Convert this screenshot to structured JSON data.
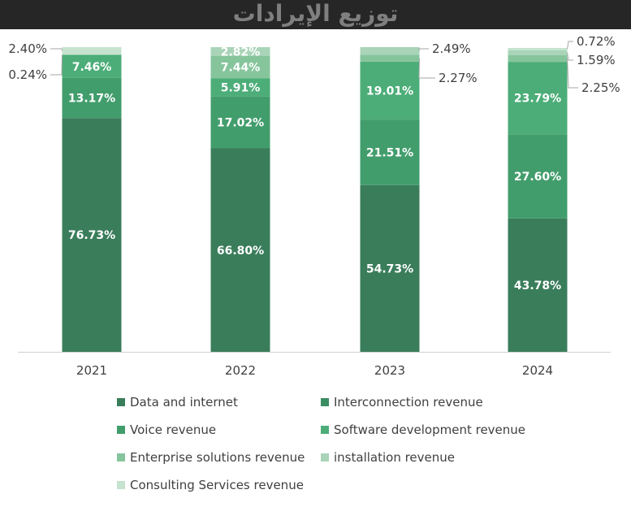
{
  "chart_data": {
    "type": "bar",
    "stacked": true,
    "title": "توزيع الإيرادات",
    "categories": [
      "2021",
      "2022",
      "2023",
      "2024"
    ],
    "series": [
      {
        "name": "Data and internet",
        "color": "#3a7d5b",
        "values": [
          76.73,
          66.8,
          54.73,
          43.78
        ],
        "labels": [
          "76.73%",
          "66.80%",
          "54.73%",
          "43.78%"
        ]
      },
      {
        "name": "Interconnection revenue",
        "color": "#3b8d62",
        "values": [
          0,
          0,
          0,
          0
        ],
        "labels": [
          "",
          "",
          "",
          ""
        ]
      },
      {
        "name": "Voice revenue",
        "color": "#429d6c",
        "values": [
          13.17,
          17.02,
          21.51,
          27.6
        ],
        "labels": [
          "13.17%",
          "17.02%",
          "21.51%",
          "27.60%"
        ]
      },
      {
        "name": "Software development revenue",
        "color": "#4cad78",
        "values": [
          7.46,
          5.91,
          19.01,
          23.79
        ],
        "labels": [
          "7.46%",
          "5.91%",
          "19.01%",
          "23.79%"
        ]
      },
      {
        "name": "Enterprise solutions revenue",
        "color": "#86c59c",
        "values": [
          0.24,
          7.44,
          2.27,
          2.25
        ],
        "labels": [
          "0.24%",
          "7.44%",
          "2.27%",
          "2.25%"
        ]
      },
      {
        "name": "installation revenue",
        "color": "#a9d4b8",
        "values": [
          0,
          2.82,
          2.49,
          1.59
        ],
        "labels": [
          "",
          "2.82%",
          "2.49%",
          "1.59%"
        ]
      },
      {
        "name": "Consulting Services revenue",
        "color": "#c6e3cf",
        "values": [
          2.4,
          0,
          0,
          0.72
        ],
        "labels": [
          "2.40%",
          "",
          "",
          "0.72%"
        ]
      }
    ],
    "ylim": [
      0,
      100
    ],
    "grid": false,
    "legend_position": "bottom"
  }
}
